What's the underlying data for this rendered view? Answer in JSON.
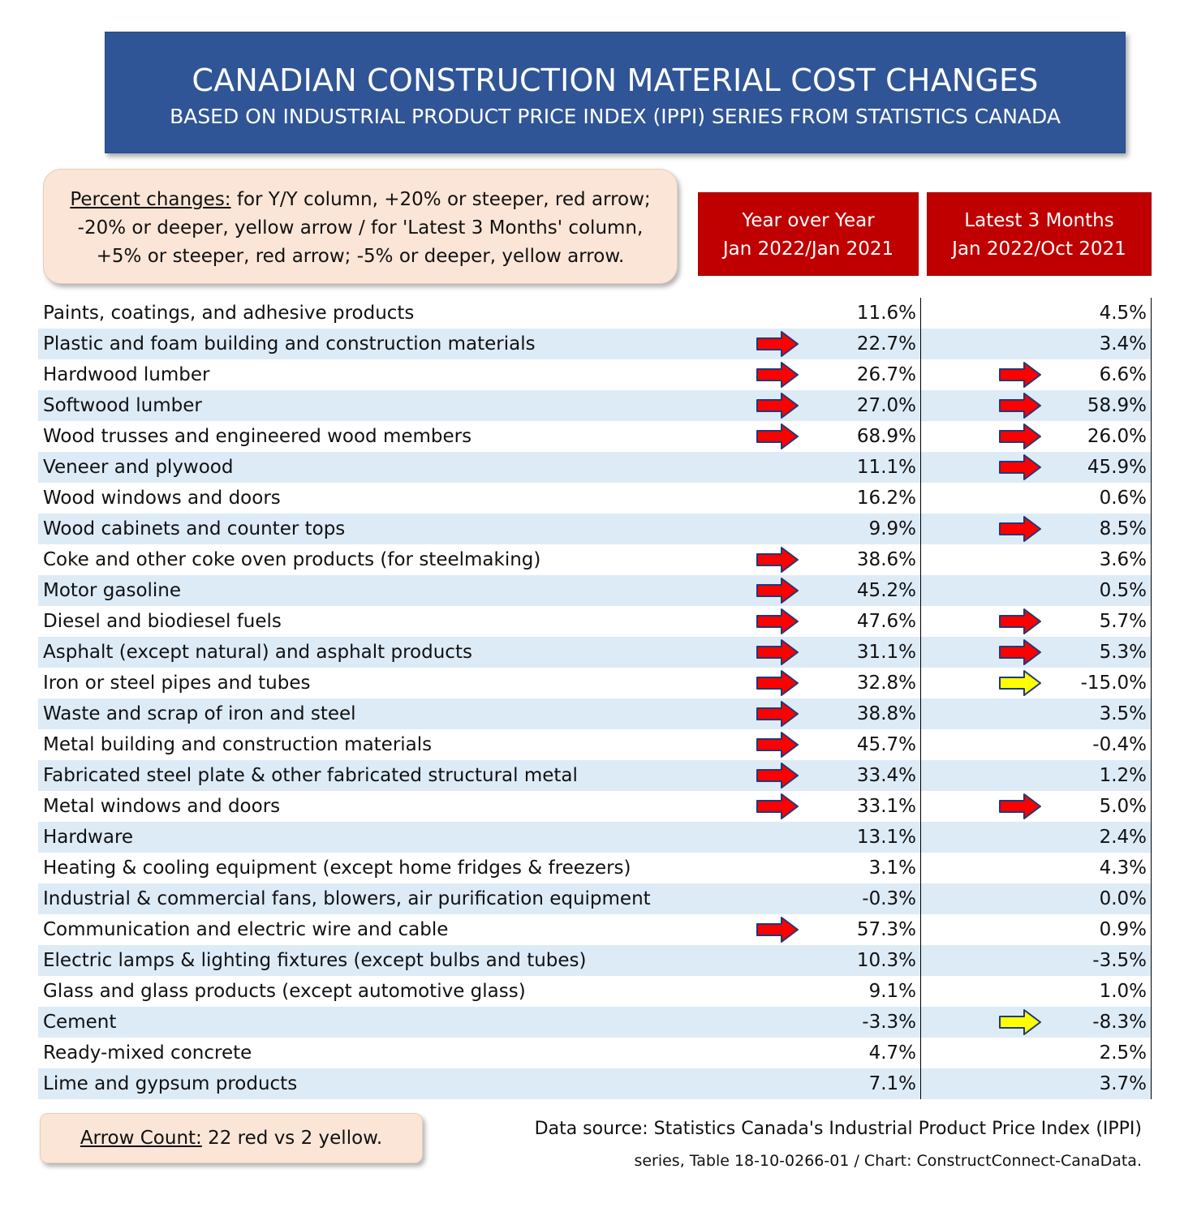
{
  "header": {
    "title": "CANADIAN CONSTRUCTION MATERIAL COST CHANGES",
    "subtitle": "BASED ON INDUSTRIAL PRODUCT PRICE INDEX (IPPI) SERIES FROM STATISTICS CANADA"
  },
  "note": {
    "label": "Percent changes:",
    "text1": " for Y/Y column, +20% or steeper, red arrow;",
    "text2": "-20% or deeper, yellow arrow / for 'Latest 3 Months' column,",
    "text3": "+5% or steeper, red arrow; -5% or deeper, yellow arrow."
  },
  "columns": {
    "yoy_line1": "Year over Year",
    "yoy_line2": "Jan 2022/Jan 2021",
    "m3_line1": "Latest 3 Months",
    "m3_line2": "Jan 2022/Oct 2021"
  },
  "colors": {
    "title_bg": "#2f5597",
    "header_bg": "#c00000",
    "note_bg": "#fbe5d6",
    "row_alt": "#ddebf7",
    "red_arrow": "#ff0000",
    "yellow_arrow": "#ffff00"
  },
  "chart_data": {
    "type": "table",
    "columns": [
      "Year over Year Jan 2022/Jan 2021",
      "Latest 3 Months Jan 2022/Oct 2021"
    ],
    "rows": [
      {
        "category": "Paints, coatings, and adhesive products",
        "yoy": "11.6%",
        "m3": "4.5%",
        "yoy_arrow": "",
        "m3_arrow": ""
      },
      {
        "category": "Plastic and foam building and construction materials",
        "yoy": "22.7%",
        "m3": "3.4%",
        "yoy_arrow": "red",
        "m3_arrow": ""
      },
      {
        "category": "Hardwood lumber",
        "yoy": "26.7%",
        "m3": "6.6%",
        "yoy_arrow": "red",
        "m3_arrow": "red"
      },
      {
        "category": "Softwood lumber",
        "yoy": "27.0%",
        "m3": "58.9%",
        "yoy_arrow": "red",
        "m3_arrow": "red"
      },
      {
        "category": "Wood trusses and engineered wood members",
        "yoy": "68.9%",
        "m3": "26.0%",
        "yoy_arrow": "red",
        "m3_arrow": "red"
      },
      {
        "category": "Veneer and plywood",
        "yoy": "11.1%",
        "m3": "45.9%",
        "yoy_arrow": "",
        "m3_arrow": "red"
      },
      {
        "category": "Wood windows and doors",
        "yoy": "16.2%",
        "m3": "0.6%",
        "yoy_arrow": "",
        "m3_arrow": ""
      },
      {
        "category": "Wood cabinets and counter tops",
        "yoy": "9.9%",
        "m3": "8.5%",
        "yoy_arrow": "",
        "m3_arrow": "red"
      },
      {
        "category": "Coke and other coke oven products (for steelmaking)",
        "yoy": "38.6%",
        "m3": "3.6%",
        "yoy_arrow": "red",
        "m3_arrow": ""
      },
      {
        "category": "Motor gasoline",
        "yoy": "45.2%",
        "m3": "0.5%",
        "yoy_arrow": "red",
        "m3_arrow": ""
      },
      {
        "category": "Diesel and biodiesel fuels",
        "yoy": "47.6%",
        "m3": "5.7%",
        "yoy_arrow": "red",
        "m3_arrow": "red"
      },
      {
        "category": "Asphalt (except natural) and asphalt products",
        "yoy": "31.1%",
        "m3": "5.3%",
        "yoy_arrow": "red",
        "m3_arrow": "red"
      },
      {
        "category": "Iron or steel pipes and tubes",
        "yoy": "32.8%",
        "m3": "-15.0%",
        "yoy_arrow": "red",
        "m3_arrow": "yellow"
      },
      {
        "category": "Waste and scrap of iron and steel",
        "yoy": "38.8%",
        "m3": "3.5%",
        "yoy_arrow": "red",
        "m3_arrow": ""
      },
      {
        "category": "Metal building and construction materials",
        "yoy": "45.7%",
        "m3": "-0.4%",
        "yoy_arrow": "red",
        "m3_arrow": ""
      },
      {
        "category": "Fabricated steel plate & other fabricated structural metal",
        "yoy": "33.4%",
        "m3": "1.2%",
        "yoy_arrow": "red",
        "m3_arrow": ""
      },
      {
        "category": "Metal windows and doors",
        "yoy": "33.1%",
        "m3": "5.0%",
        "yoy_arrow": "red",
        "m3_arrow": "red"
      },
      {
        "category": "Hardware",
        "yoy": "13.1%",
        "m3": "2.4%",
        "yoy_arrow": "",
        "m3_arrow": ""
      },
      {
        "category": "Heating & cooling equipment (except home fridges & freezers)",
        "yoy": "3.1%",
        "m3": "4.3%",
        "yoy_arrow": "",
        "m3_arrow": ""
      },
      {
        "category": "Industrial & commercial fans, blowers, air purification equipment",
        "yoy": "-0.3%",
        "m3": "0.0%",
        "yoy_arrow": "",
        "m3_arrow": ""
      },
      {
        "category": "Communication and electric wire and cable",
        "yoy": "57.3%",
        "m3": "0.9%",
        "yoy_arrow": "red",
        "m3_arrow": ""
      },
      {
        "category": "Electric lamps & lighting fixtures (except bulbs and tubes)",
        "yoy": "10.3%",
        "m3": "-3.5%",
        "yoy_arrow": "",
        "m3_arrow": ""
      },
      {
        "category": "Glass and glass products (except automotive glass)",
        "yoy": "9.1%",
        "m3": "1.0%",
        "yoy_arrow": "",
        "m3_arrow": ""
      },
      {
        "category": "Cement",
        "yoy": "-3.3%",
        "m3": "-8.3%",
        "yoy_arrow": "",
        "m3_arrow": "yellow"
      },
      {
        "category": "Ready-mixed concrete",
        "yoy": "4.7%",
        "m3": "2.5%",
        "yoy_arrow": "",
        "m3_arrow": ""
      },
      {
        "category": "Lime and gypsum products",
        "yoy": "7.1%",
        "m3": "3.7%",
        "yoy_arrow": "",
        "m3_arrow": ""
      }
    ]
  },
  "footer": {
    "count_label": "Arrow Count:",
    "count_text": " 22 red vs 2 yellow.",
    "source_line1": "Data source: Statistics Canada's Industrial Product Price Index (IPPI)",
    "source_line2": "series, Table 18-10-0266-01 / Chart: ConstructConnect-CanaData."
  }
}
